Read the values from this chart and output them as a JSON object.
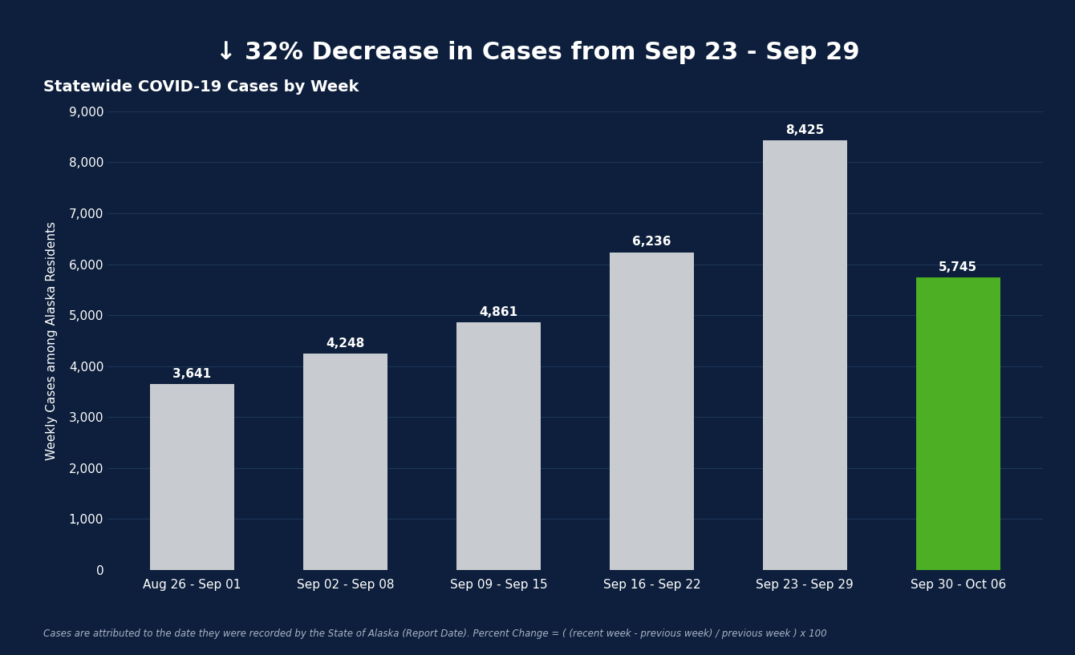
{
  "background_color": "#0d1f3c",
  "banner_color": "#4caf24",
  "banner_text": "↓ 32% Decrease in Cases from Sep 23 - Sep 29",
  "banner_text_color": "#ffffff",
  "subtitle": "Statewide COVID-19 Cases by Week",
  "subtitle_color": "#ffffff",
  "ylabel": "Weekly Cases among Alaska Residents",
  "ylabel_color": "#ffffff",
  "categories": [
    "Aug 26 - Sep 01",
    "Sep 02 - Sep 08",
    "Sep 09 - Sep 15",
    "Sep 16 - Sep 22",
    "Sep 23 - Sep 29",
    "Sep 30 - Oct 06"
  ],
  "values": [
    3641,
    4248,
    4861,
    6236,
    8425,
    5745
  ],
  "bar_colors": [
    "#c8ccd0",
    "#c8ccd0",
    "#c8ccd0",
    "#c8ccd0",
    "#c8ccd0",
    "#4caf24"
  ],
  "ylim": [
    0,
    9000
  ],
  "yticks": [
    0,
    1000,
    2000,
    3000,
    4000,
    5000,
    6000,
    7000,
    8000,
    9000
  ],
  "axis_color": "#ffffff",
  "tick_color": "#ffffff",
  "grid_color": "#1e3558",
  "footnote": "Cases are attributed to the date they were recorded by the State of Alaska (Report Date). Percent Change = ( (recent week - previous week) / previous week ) x 100",
  "footnote_color": "#aab4c8"
}
